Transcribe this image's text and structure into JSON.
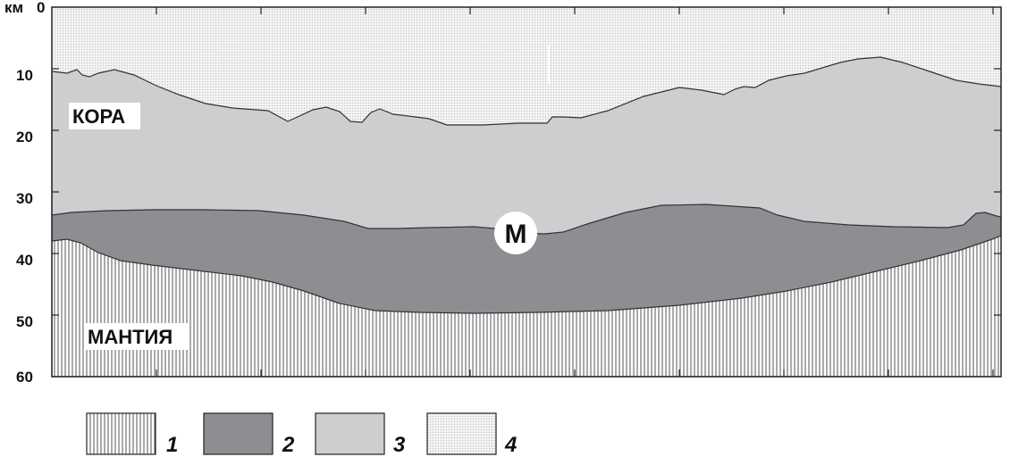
{
  "axis": {
    "unit": "км",
    "ticks": [
      "0",
      "10",
      "20",
      "30",
      "40",
      "50",
      "60"
    ]
  },
  "labels": {
    "crust": "КОРА",
    "mantle": "МАНТИЯ",
    "moho": "М"
  },
  "legend": [
    {
      "number": "1",
      "pattern": "vertical-hatch"
    },
    {
      "number": "2",
      "pattern": "dark-gray"
    },
    {
      "number": "3",
      "pattern": "light-gray"
    },
    {
      "number": "4",
      "pattern": "dotted"
    }
  ],
  "colors": {
    "layer1": "#ffffff",
    "layer2": "#8d8e92",
    "layer3": "#cdced0",
    "layer4": "#f1f1f1",
    "outline": "#222222"
  }
}
